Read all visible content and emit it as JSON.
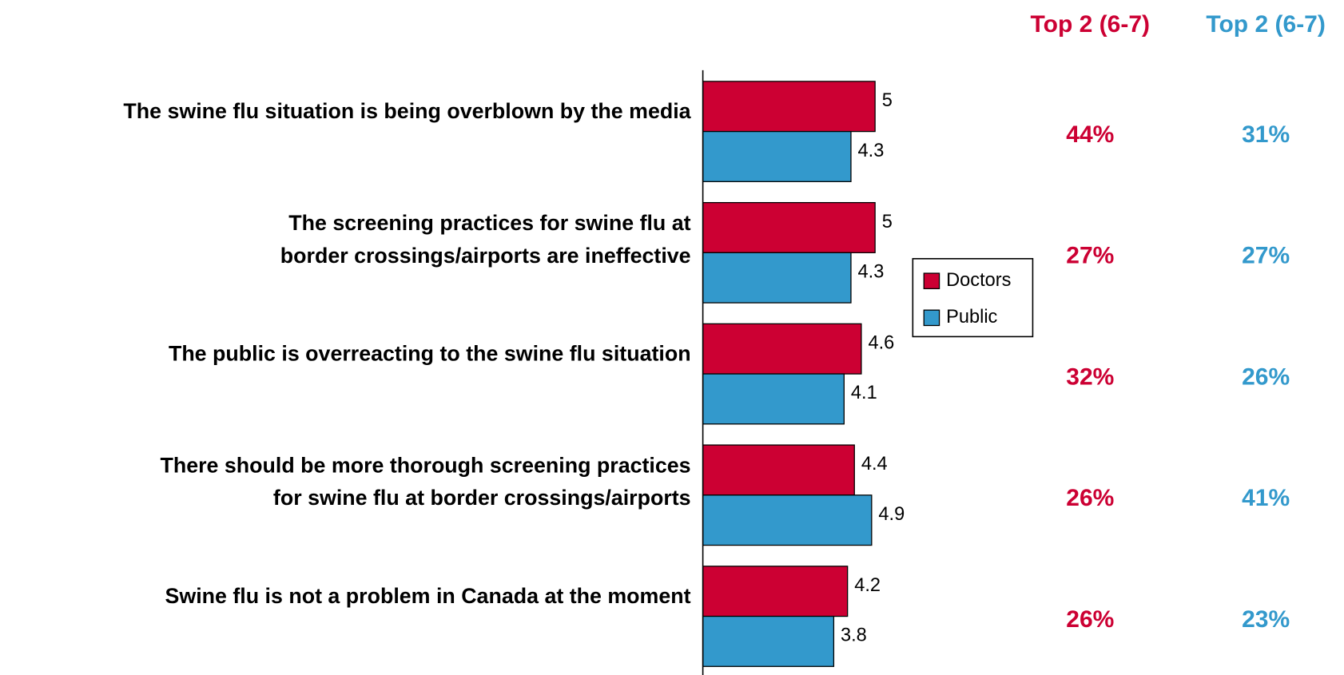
{
  "chart_data": {
    "type": "hbar",
    "categories": [
      [
        "The swine flu situation is being overblown by the media"
      ],
      [
        "The screening practices for swine flu at",
        "border crossings/airports are ineffective"
      ],
      [
        "The public is overreacting to the swine flu situation"
      ],
      [
        "There should be more thorough screening practices",
        "for swine flu at border crossings/airports"
      ],
      [
        "Swine flu is not a problem in Canada at the moment"
      ]
    ],
    "series": [
      {
        "name": "Doctors",
        "color": "#cc0033",
        "values": [
          5.0,
          5.0,
          4.6,
          4.4,
          4.2
        ],
        "top2_header": "Top 2 (6-7)",
        "top2_values": [
          44,
          27,
          32,
          26,
          26
        ],
        "top2_labels": [
          "44%",
          "27%",
          "32%",
          "26%",
          "26%"
        ]
      },
      {
        "name": "Public",
        "color": "#3399cc",
        "values": [
          4.3,
          4.3,
          4.1,
          4.9,
          3.8
        ],
        "top2_header": "Top 2 (6-7)",
        "top2_values": [
          31,
          27,
          26,
          41,
          23
        ],
        "top2_labels": [
          "31%",
          "27%",
          "26%",
          "41%",
          "23%"
        ]
      }
    ],
    "xlim": [
      0,
      7
    ],
    "legend": "center-right"
  }
}
